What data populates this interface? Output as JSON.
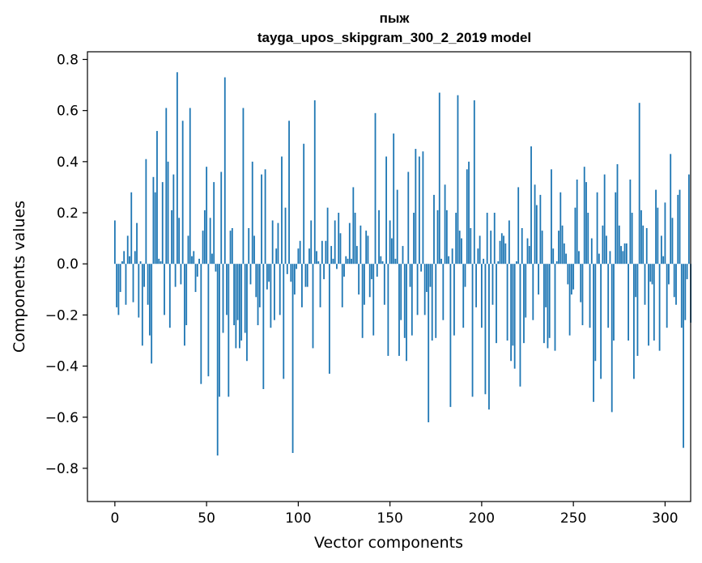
{
  "chart_data": {
    "type": "bar",
    "title_line1": "пыж",
    "title_line2": "tayga_upos_skipgram_300_2_2019 model",
    "xlabel": "Vector components",
    "ylabel": "Components values",
    "xlim": [
      -14.95,
      313.95
    ],
    "ylim": [
      -0.93,
      0.83
    ],
    "xticks": [
      0,
      50,
      100,
      150,
      200,
      250,
      300
    ],
    "xtick_labels": [
      "0",
      "50",
      "100",
      "150",
      "200",
      "250",
      "300"
    ],
    "yticks": [
      -0.8,
      -0.6,
      -0.4,
      -0.2,
      0.0,
      0.2,
      0.4,
      0.6,
      0.8
    ],
    "ytick_labels": [
      "−0.8",
      "−0.6",
      "−0.4",
      "−0.2",
      "0.0",
      "0.2",
      "0.4",
      "0.6",
      "0.8"
    ],
    "bar_color": "#1f77b4",
    "values": [
      0.17,
      -0.17,
      -0.2,
      -0.11,
      0.01,
      0.05,
      -0.16,
      0.11,
      0.03,
      0.28,
      -0.15,
      0.05,
      0.16,
      -0.21,
      0.01,
      -0.32,
      -0.09,
      0.41,
      -0.16,
      -0.28,
      -0.39,
      0.34,
      0.28,
      0.52,
      0.02,
      0.01,
      0.32,
      -0.2,
      0.61,
      0.4,
      -0.25,
      0.21,
      0.35,
      -0.09,
      0.75,
      0.18,
      -0.08,
      0.56,
      -0.32,
      -0.24,
      0.11,
      0.61,
      0.03,
      0.05,
      -0.11,
      -0.05,
      0.02,
      -0.47,
      0.13,
      0.21,
      0.38,
      -0.44,
      0.18,
      0.04,
      0.32,
      -0.03,
      -0.75,
      -0.52,
      0.36,
      -0.27,
      0.73,
      -0.2,
      -0.52,
      0.13,
      0.14,
      -0.24,
      -0.33,
      -0.22,
      -0.33,
      -0.3,
      0.61,
      -0.27,
      -0.38,
      0.14,
      -0.08,
      0.4,
      0.11,
      -0.13,
      -0.24,
      -0.17,
      0.35,
      -0.49,
      0.37,
      -0.1,
      -0.07,
      -0.25,
      0.17,
      -0.22,
      0.06,
      0.16,
      -0.2,
      0.42,
      -0.45,
      0.22,
      -0.04,
      0.56,
      -0.07,
      -0.74,
      -0.12,
      -0.02,
      0.06,
      0.09,
      -0.17,
      0.47,
      -0.09,
      -0.09,
      0.06,
      0.17,
      -0.33,
      0.64,
      0.05,
      0.01,
      -0.17,
      0.09,
      -0.06,
      0.09,
      0.22,
      -0.43,
      0.07,
      0.02,
      0.17,
      -0.02,
      0.2,
      0.12,
      -0.17,
      -0.05,
      0.03,
      0.02,
      0.16,
      0.02,
      0.3,
      0.2,
      0.07,
      -0.12,
      0.15,
      -0.29,
      -0.16,
      0.13,
      0.11,
      -0.13,
      -0.06,
      -0.28,
      0.59,
      -0.05,
      0.21,
      0.03,
      0.01,
      -0.16,
      0.42,
      -0.36,
      0.17,
      0.1,
      0.51,
      0.02,
      0.29,
      -0.36,
      -0.22,
      0.07,
      -0.29,
      -0.38,
      0.36,
      -0.09,
      -0.28,
      0.2,
      0.45,
      -0.2,
      0.42,
      -0.03,
      0.44,
      -0.2,
      -0.11,
      -0.62,
      -0.09,
      -0.3,
      0.27,
      -0.29,
      0.21,
      0.67,
      0.02,
      -0.22,
      0.31,
      0.21,
      0.03,
      -0.56,
      0.06,
      -0.28,
      0.2,
      0.66,
      0.13,
      0.1,
      -0.25,
      -0.09,
      0.37,
      0.4,
      0.14,
      -0.52,
      0.64,
      -0.17,
      0.06,
      0.11,
      -0.25,
      0.02,
      -0.51,
      0.2,
      -0.57,
      0.13,
      -0.16,
      0.2,
      -0.31,
      0.01,
      0.09,
      0.12,
      0.11,
      0.08,
      -0.3,
      0.17,
      -0.38,
      -0.32,
      -0.41,
      0.01,
      0.3,
      -0.48,
      0.14,
      -0.31,
      -0.21,
      0.1,
      0.07,
      0.46,
      -0.22,
      0.31,
      0.23,
      -0.12,
      0.27,
      0.13,
      -0.31,
      -0.17,
      -0.33,
      -0.29,
      0.37,
      0.06,
      -0.34,
      0.01,
      0.13,
      0.28,
      0.15,
      0.08,
      0.04,
      -0.08,
      -0.28,
      -0.12,
      -0.1,
      0.22,
      0.33,
      0.05,
      -0.15,
      -0.24,
      0.38,
      0.32,
      0.2,
      -0.25,
      0.1,
      -0.54,
      -0.38,
      0.28,
      0.04,
      -0.45,
      0.15,
      0.35,
      0.11,
      -0.25,
      0.05,
      -0.58,
      -0.3,
      0.28,
      0.39,
      0.15,
      0.07,
      0.05,
      0.08,
      0.08,
      -0.3,
      0.33,
      0.2,
      -0.45,
      -0.13,
      -0.36,
      0.63,
      0.21,
      0.15,
      -0.16,
      0.14,
      -0.32,
      -0.07,
      -0.08,
      -0.3,
      0.29,
      0.22,
      -0.34,
      0.11,
      0.03,
      0.24,
      -0.25,
      -0.08,
      0.43,
      0.18,
      -0.13,
      -0.16,
      0.27,
      0.29,
      -0.25,
      -0.72,
      -0.22,
      -0.06,
      0.35,
      -0.23
    ]
  }
}
